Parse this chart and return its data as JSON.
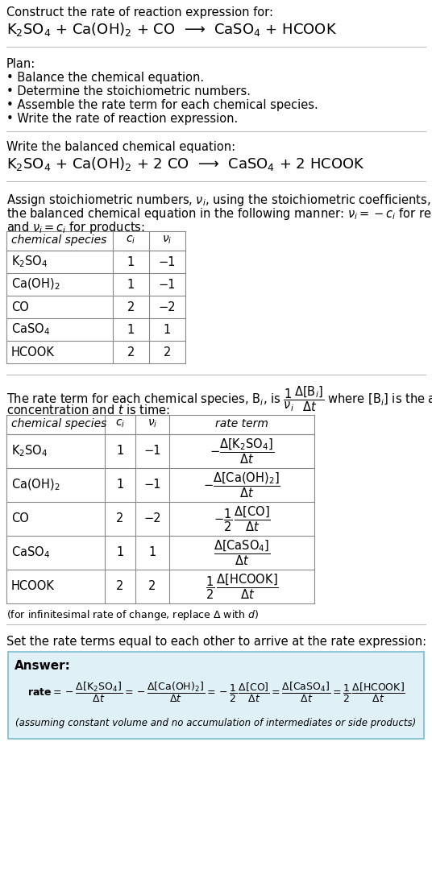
{
  "bg_color": "#ffffff",
  "text_color": "#000000",
  "title_line1": "Construct the rate of reaction expression for:",
  "reaction_unbalanced": "K$_2$SO$_4$ + Ca(OH)$_2$ + CO  ⟶  CaSO$_4$ + HCOOK",
  "plan_header": "Plan:",
  "plan_items": [
    "• Balance the chemical equation.",
    "• Determine the stoichiometric numbers.",
    "• Assemble the rate term for each chemical species.",
    "• Write the rate of reaction expression."
  ],
  "balanced_header": "Write the balanced chemical equation:",
  "reaction_balanced": "K$_2$SO$_4$ + Ca(OH)$_2$ + 2 CO  ⟶  CaSO$_4$ + 2 HCOOK",
  "table1_headers": [
    "chemical species",
    "c_i",
    "v_i"
  ],
  "table1_rows": [
    [
      "K$_2$SO$_4$",
      "1",
      "−1"
    ],
    [
      "Ca(OH)$_2$",
      "1",
      "−1"
    ],
    [
      "CO",
      "2",
      "−2"
    ],
    [
      "CaSO$_4$",
      "1",
      "1"
    ],
    [
      "HCOOK",
      "2",
      "2"
    ]
  ],
  "table2_headers": [
    "chemical species",
    "c_i",
    "v_i",
    "rate term"
  ],
  "table2_rows": [
    [
      "K$_2$SO$_4$",
      "1",
      "−1"
    ],
    [
      "Ca(OH)$_2$",
      "1",
      "−1"
    ],
    [
      "CO",
      "2",
      "−2"
    ],
    [
      "CaSO$_4$",
      "1",
      "1"
    ],
    [
      "HCOOK",
      "2",
      "2"
    ]
  ],
  "infinitesimal_note": "(for infinitesimal rate of change, replace Δ with d)",
  "set_equal_text": "Set the rate terms equal to each other to arrive at the rate expression:",
  "answer_box_color": "#dff0f7",
  "answer_box_border": "#7bbcce",
  "answer_label": "Answer:",
  "answer_note": "(assuming constant volume and no accumulation of intermediates or side products)"
}
